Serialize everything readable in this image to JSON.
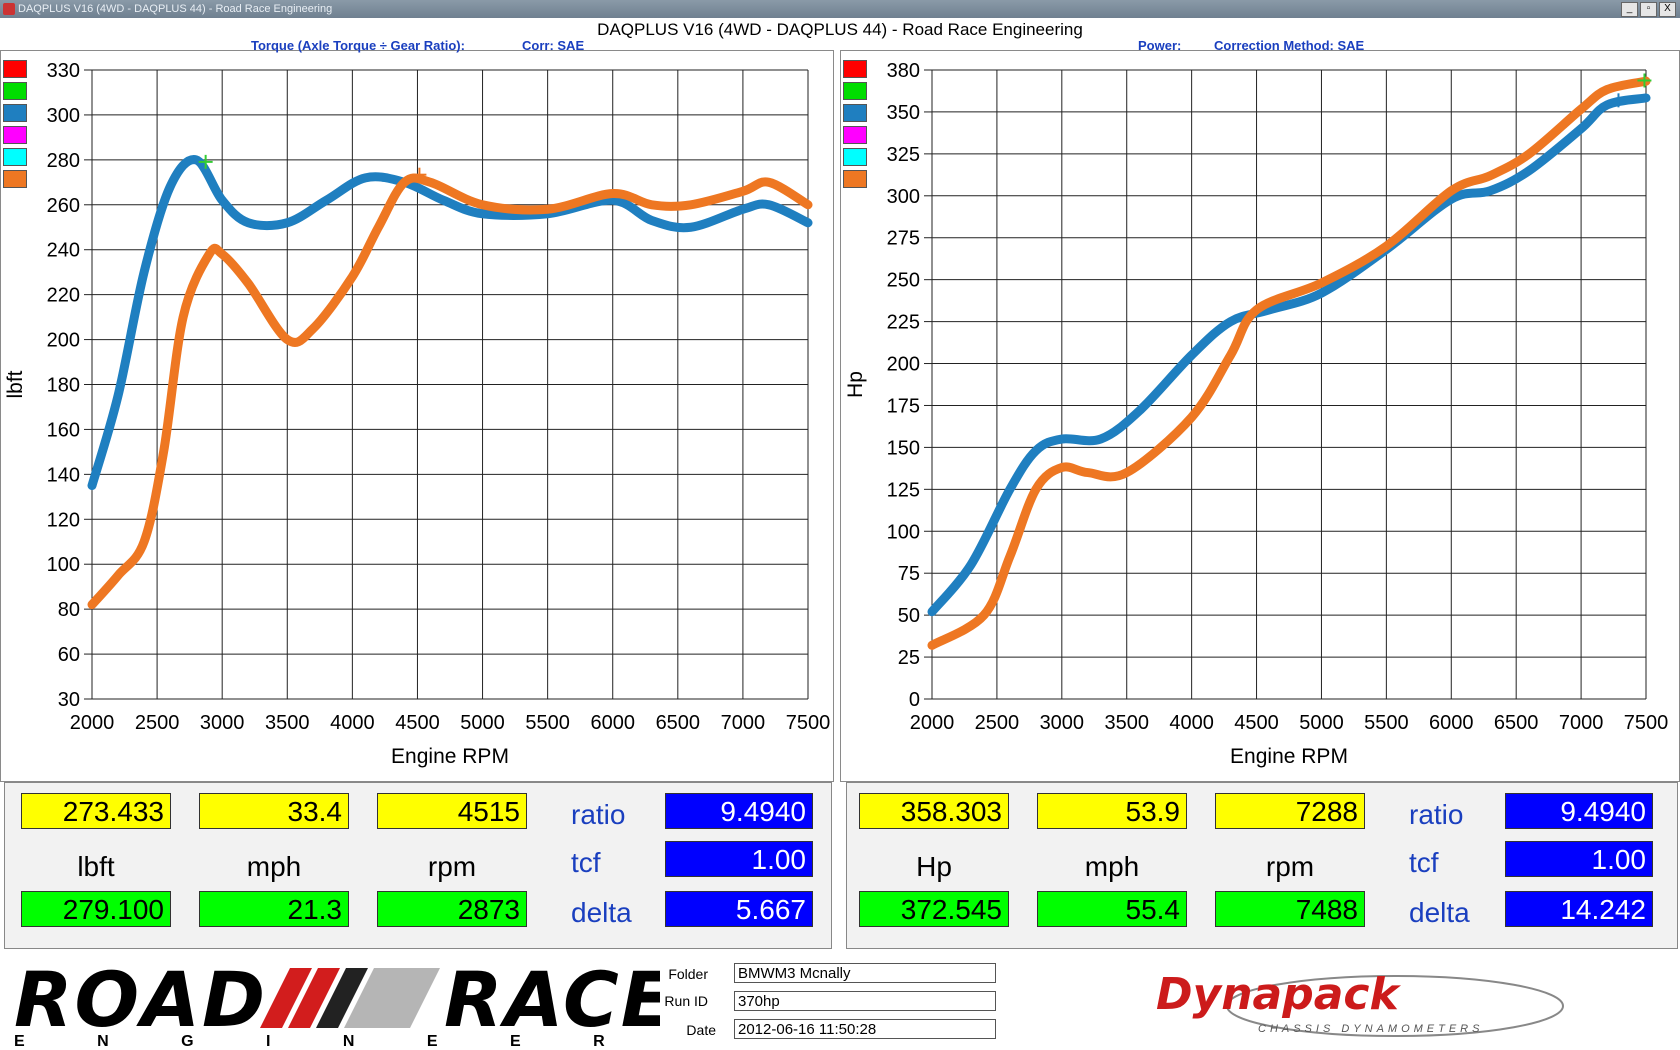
{
  "window": {
    "title": "DAQPLUS V16 (4WD - DAQPLUS 44) - Road Race Engineering",
    "buttons": [
      "_",
      "▫",
      "X"
    ]
  },
  "main_title": "DAQPLUS V16 (4WD - DAQPLUS 44) - Road Race Engineering",
  "left_header": {
    "label": "Torque (Axle Torque ÷ Gear Ratio):",
    "corr": "Corr: SAE"
  },
  "right_header": {
    "label": "Power:",
    "corr": "Correction Method: SAE"
  },
  "legend_colors": [
    "#ff0000",
    "#00dd00",
    "#1f7fc0",
    "#ff00ff",
    "#00ffff",
    "#ee7722"
  ],
  "chart_data": [
    {
      "type": "line",
      "title": "",
      "xlabel": "Engine RPM",
      "ylabel": "lbft",
      "xlim": [
        2000,
        7500
      ],
      "ylim": [
        30,
        330
      ],
      "x_ticks": [
        2000,
        2500,
        3000,
        3500,
        4000,
        4500,
        5000,
        5500,
        6000,
        6500,
        7000,
        7500
      ],
      "y_ticks": [
        30,
        60,
        80,
        100,
        120,
        140,
        160,
        180,
        200,
        220,
        240,
        260,
        280,
        300,
        330
      ],
      "grid": true,
      "series": [
        {
          "color": "#1f7fc0",
          "points": [
            [
              2000,
              135
            ],
            [
              2200,
              175
            ],
            [
              2400,
              230
            ],
            [
              2600,
              268
            ],
            [
              2800,
              280
            ],
            [
              3000,
              262
            ],
            [
              3200,
              252
            ],
            [
              3500,
              252
            ],
            [
              3800,
              262
            ],
            [
              4100,
              272
            ],
            [
              4400,
              270
            ],
            [
              4700,
              262
            ],
            [
              5000,
              256
            ],
            [
              5500,
              256
            ],
            [
              6000,
              262
            ],
            [
              6300,
              253
            ],
            [
              6600,
              250
            ],
            [
              7000,
              258
            ],
            [
              7200,
              260
            ],
            [
              7500,
              252
            ]
          ]
        },
        {
          "color": "#ee7722",
          "points": [
            [
              2000,
              82
            ],
            [
              2200,
              95
            ],
            [
              2400,
              110
            ],
            [
              2550,
              150
            ],
            [
              2700,
              210
            ],
            [
              2900,
              238
            ],
            [
              3000,
              238
            ],
            [
              3200,
              225
            ],
            [
              3500,
              200
            ],
            [
              3700,
              205
            ],
            [
              4000,
              228
            ],
            [
              4200,
              250
            ],
            [
              4400,
              270
            ],
            [
              4600,
              270
            ],
            [
              5000,
              260
            ],
            [
              5500,
              258
            ],
            [
              6000,
              265
            ],
            [
              6300,
              260
            ],
            [
              6600,
              260
            ],
            [
              7000,
              266
            ],
            [
              7200,
              270
            ],
            [
              7500,
              260
            ]
          ]
        }
      ],
      "markers": [
        {
          "x": 2873,
          "y": 279.1,
          "color": "#33cc33"
        },
        {
          "x": 4515,
          "y": 273.4,
          "color": "#ee7722"
        }
      ]
    },
    {
      "type": "line",
      "title": "",
      "xlabel": "Engine RPM",
      "ylabel": "Hp",
      "xlim": [
        2000,
        7500
      ],
      "ylim": [
        0,
        380
      ],
      "x_ticks": [
        2000,
        2500,
        3000,
        3500,
        4000,
        4500,
        5000,
        5500,
        6000,
        6500,
        7000,
        7500
      ],
      "y_ticks": [
        0,
        25,
        50,
        75,
        100,
        125,
        150,
        175,
        200,
        225,
        250,
        275,
        300,
        325,
        350,
        380
      ],
      "grid": true,
      "series": [
        {
          "color": "#1f7fc0",
          "points": [
            [
              2000,
              52
            ],
            [
              2300,
              80
            ],
            [
              2600,
              125
            ],
            [
              2800,
              148
            ],
            [
              3000,
              155
            ],
            [
              3300,
              155
            ],
            [
              3600,
              172
            ],
            [
              4000,
              205
            ],
            [
              4300,
              225
            ],
            [
              4600,
              232
            ],
            [
              5000,
              242
            ],
            [
              5500,
              268
            ],
            [
              6000,
              298
            ],
            [
              6300,
              303
            ],
            [
              6600,
              315
            ],
            [
              7000,
              340
            ],
            [
              7200,
              355
            ],
            [
              7500,
              360
            ]
          ]
        },
        {
          "color": "#ee7722",
          "points": [
            [
              2000,
              32
            ],
            [
              2400,
              50
            ],
            [
              2600,
              85
            ],
            [
              2800,
              125
            ],
            [
              3000,
              138
            ],
            [
              3200,
              135
            ],
            [
              3500,
              135
            ],
            [
              4000,
              168
            ],
            [
              4300,
              205
            ],
            [
              4500,
              232
            ],
            [
              5000,
              248
            ],
            [
              5500,
              270
            ],
            [
              6000,
              303
            ],
            [
              6300,
              312
            ],
            [
              6600,
              325
            ],
            [
              7000,
              352
            ],
            [
              7200,
              366
            ],
            [
              7500,
              372
            ]
          ]
        }
      ],
      "markers": [
        {
          "x": 7288,
          "y": 358.3,
          "color": "#1f7fc0"
        },
        {
          "x": 7488,
          "y": 372.5,
          "color": "#33cc33"
        }
      ]
    }
  ],
  "left_readout": {
    "y1": "273.433",
    "y2": "33.4",
    "y3": "4515",
    "u1": "lbft",
    "u2": "mph",
    "u3": "rpm",
    "g1": "279.100",
    "g2": "21.3",
    "g3": "2873",
    "w1": "ratio",
    "w2": "tcf",
    "w3": "delta",
    "b1": "9.4940",
    "b2": "1.00",
    "b3": "5.667"
  },
  "right_readout": {
    "y1": "358.303",
    "y2": "53.9",
    "y3": "7288",
    "u1": "Hp",
    "u2": "mph",
    "u3": "rpm",
    "g1": "372.545",
    "g2": "55.4",
    "g3": "7488",
    "w1": "ratio",
    "w2": "tcf",
    "w3": "delta",
    "b1": "9.4940",
    "b2": "1.00",
    "b3": "14.242"
  },
  "footer": {
    "logo_road": "ROAD",
    "logo_race": "RACE",
    "logo_sub": "E N G I N E E R I N G",
    "folder_label": "Folder",
    "folder_value": "BMWM3 Mcnally",
    "runid_label": "Run ID",
    "runid_value": "370hp",
    "date_label": "Date",
    "date_value": "2012-06-16 11:50:28",
    "brand": "Dynapack",
    "brand_sub": "CHASSIS DYNAMOMETERS"
  }
}
